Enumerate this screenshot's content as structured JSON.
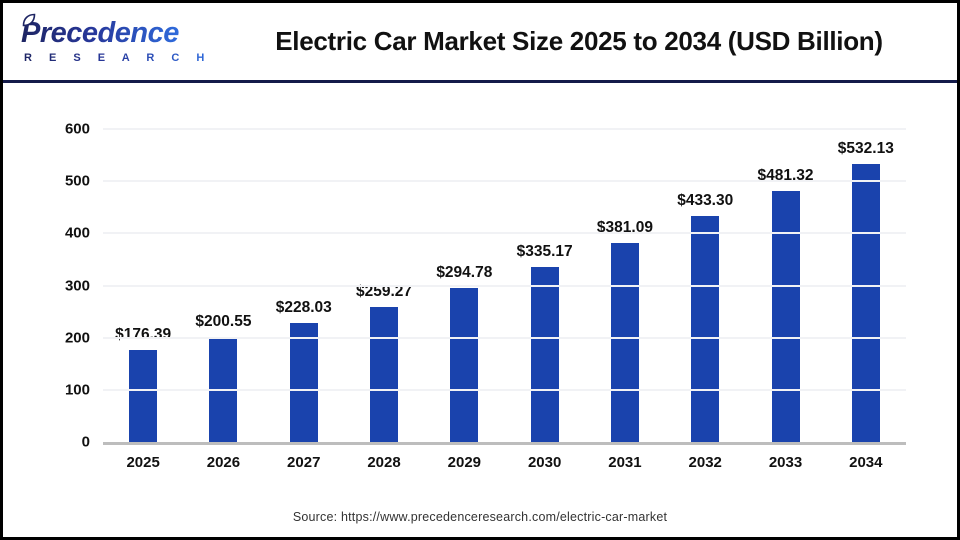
{
  "header": {
    "logo": {
      "name": "Precedence",
      "subtitle": "R E S E A R C H"
    },
    "title": "Electric Car Market Size 2025 to 2034 (USD Billion)"
  },
  "chart_data": {
    "type": "bar",
    "title": "Electric Car Market Size 2025 to 2034 (USD Billion)",
    "categories": [
      "2025",
      "2026",
      "2027",
      "2028",
      "2029",
      "2030",
      "2031",
      "2032",
      "2033",
      "2034"
    ],
    "values": [
      176.39,
      200.55,
      228.03,
      259.27,
      294.78,
      335.17,
      381.09,
      433.3,
      481.32,
      532.13
    ],
    "value_labels": [
      "$176.39",
      "$200.55",
      "$228.03",
      "$259.27",
      "$294.78",
      "$335.17",
      "$381.09",
      "$433.30",
      "$481.32",
      "$532.13"
    ],
    "xlabel": "",
    "ylabel": "",
    "ylim": [
      0,
      600
    ],
    "yticks": [
      0,
      100,
      200,
      300,
      400,
      500,
      600
    ],
    "grid": true,
    "legend": false,
    "bar_color": "#1a43ad"
  },
  "footer": {
    "source": "Source: https://www.precedenceresearch.com/electric-car-market"
  },
  "colors": {
    "bar": "#1a43ad",
    "divider": "#141b4a",
    "axis_line": "#bdbdbd",
    "gridline": "#f1f2f5",
    "logo_dark": "#1e2563",
    "logo_light": "#2f6bdc",
    "frame_border": "#000000"
  }
}
